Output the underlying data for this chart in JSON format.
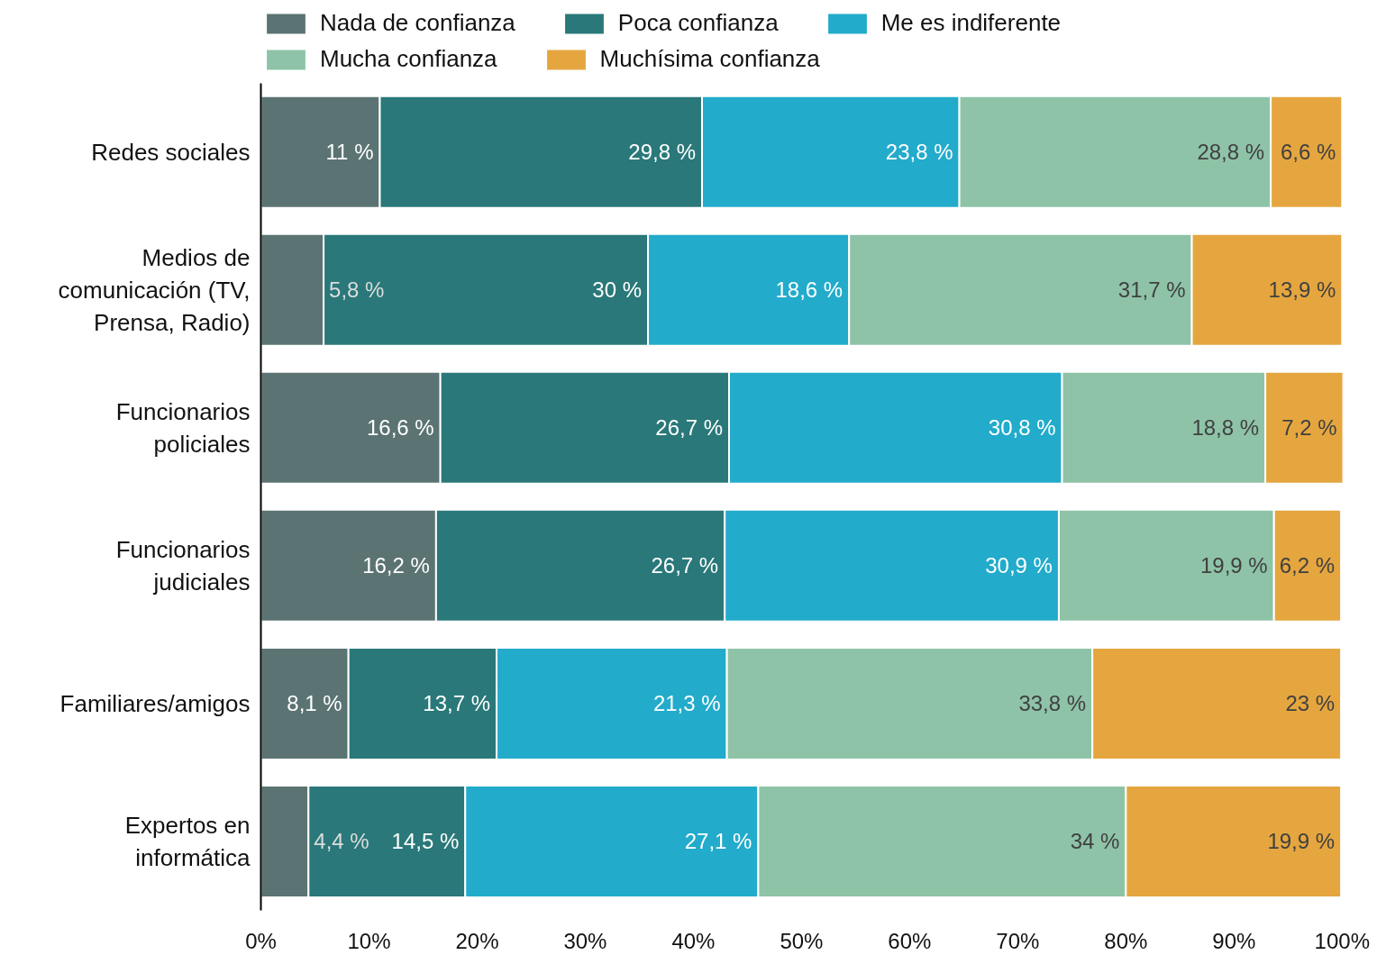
{
  "chart_data": {
    "type": "bar",
    "orientation": "horizontal",
    "stacked": true,
    "categories": [
      "Redes sociales",
      "Medios de comunicación (TV, Prensa, Radio)",
      "Funcionarios policiales",
      "Funcionarios judiciales",
      "Familiares/amigos",
      "Expertos en informática"
    ],
    "series": [
      {
        "name": "Nada de confianza",
        "color": "#5b7373",
        "values": [
          11,
          5.8,
          16.6,
          16.2,
          8.1,
          4.4
        ],
        "value_labels": [
          "11 %",
          "5,8 %",
          "16,6 %",
          "16,2 %",
          "8,1 %",
          "4,4 %"
        ]
      },
      {
        "name": "Poca confianza",
        "color": "#2a7879",
        "values": [
          29.8,
          30,
          26.7,
          26.7,
          13.7,
          14.5
        ],
        "value_labels": [
          "29,8 %",
          "30 %",
          "26,7 %",
          "26,7 %",
          "13,7 %",
          "14,5 %"
        ]
      },
      {
        "name": "Me es indiferente",
        "color": "#22abcb",
        "values": [
          23.8,
          18.6,
          30.8,
          30.9,
          21.3,
          27.1
        ],
        "value_labels": [
          "23,8 %",
          "18,6 %",
          "30,8 %",
          "30,9 %",
          "21,3 %",
          "27,1 %"
        ]
      },
      {
        "name": "Mucha confianza",
        "color": "#8ec3a7",
        "values": [
          28.8,
          31.7,
          18.8,
          19.9,
          33.8,
          34
        ],
        "value_labels": [
          "28,8 %",
          "31,7 %",
          "18,8 %",
          "19,9 %",
          "33,8 %",
          "34 %"
        ]
      },
      {
        "name": "Muchísima confianza",
        "color": "#e5a63f",
        "values": [
          6.6,
          13.9,
          7.2,
          6.2,
          23,
          19.9
        ],
        "value_labels": [
          "6,6 %",
          "13,9 %",
          "7,2 %",
          "6,2 %",
          "23 %",
          "19,9 %"
        ]
      }
    ],
    "xlim": [
      0,
      100.1
    ],
    "xticks": [
      {
        "value": 0,
        "label": "0%"
      },
      {
        "value": 10,
        "label": "10%"
      },
      {
        "value": 20,
        "label": "20%"
      },
      {
        "value": 30,
        "label": "30%"
      },
      {
        "value": 40,
        "label": "40%"
      },
      {
        "value": 50,
        "label": "50%"
      },
      {
        "value": 60,
        "label": "60%"
      },
      {
        "value": 70,
        "label": "70%"
      },
      {
        "value": 80,
        "label": "80%"
      },
      {
        "value": 90,
        "label": "90%"
      },
      {
        "value": 100,
        "label": "100%"
      }
    ],
    "legend": "top"
  }
}
